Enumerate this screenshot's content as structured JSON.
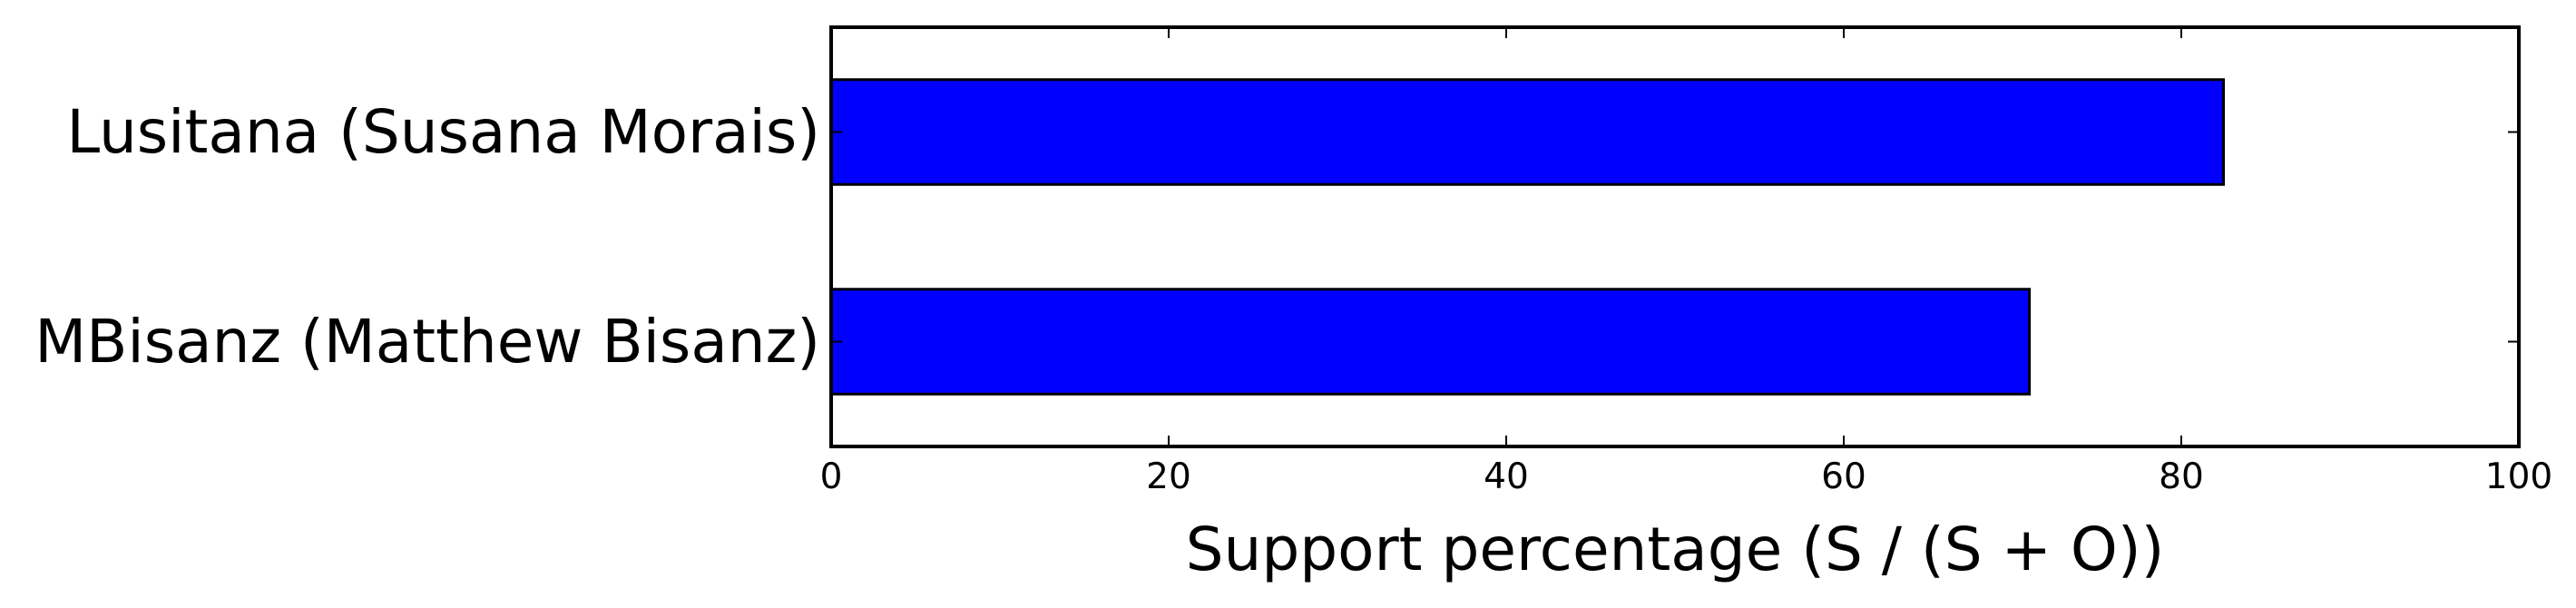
{
  "chart_data": {
    "type": "bar",
    "orientation": "horizontal",
    "categories": [
      "Lusitana (Susana Morais)",
      "MBisanz (Matthew Bisanz)"
    ],
    "values": [
      82.5,
      71
    ],
    "xlabel": "Support percentage (S / (S + O))",
    "xlim": [
      0,
      100
    ],
    "xticks": [
      "0",
      "20",
      "40",
      "60",
      "80",
      "100"
    ],
    "grid": false,
    "colors": {
      "bar": "#0000ff",
      "edge": "#000000"
    }
  }
}
